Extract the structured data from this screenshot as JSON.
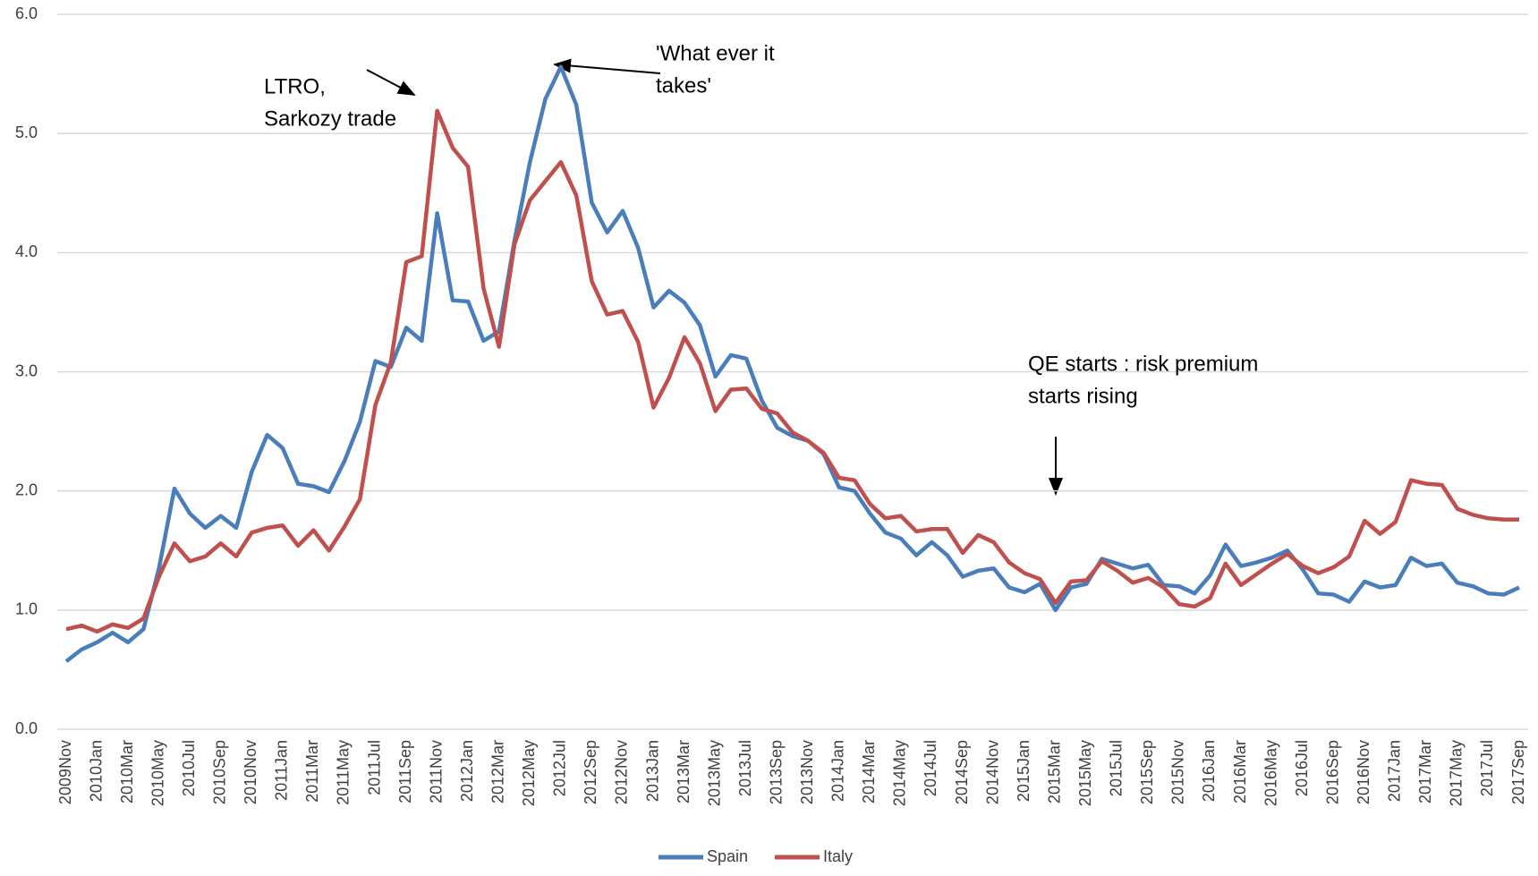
{
  "chart_data": {
    "type": "line",
    "categories": [
      "2009Nov",
      null,
      "2010Jan",
      null,
      "2010Mar",
      null,
      "2010May",
      null,
      "2010Jul",
      null,
      "2010Sep",
      null,
      "2010Nov",
      null,
      "2011Jan",
      null,
      "2011Mar",
      null,
      "2011May",
      null,
      "2011Jul",
      null,
      "2011Sep",
      null,
      "2011Nov",
      null,
      "2012Jan",
      null,
      "2012Mar",
      null,
      "2012May",
      null,
      "2012Jul",
      null,
      "2012Sep",
      null,
      "2012Nov",
      null,
      "2013Jan",
      null,
      "2013Mar",
      null,
      "2013May",
      null,
      "2013Jul",
      null,
      "2013Sep",
      null,
      "2013Nov",
      null,
      "2014Jan",
      null,
      "2014Mar",
      null,
      "2014May",
      null,
      "2014Jul",
      null,
      "2014Sep",
      null,
      "2014Nov",
      null,
      "2015Jan",
      null,
      "2015Mar",
      null,
      "2015May",
      null,
      "2015Jul",
      null,
      "2015Sep",
      null,
      "2015Nov",
      null,
      "2016Jan",
      null,
      "2016Mar",
      null,
      "2016May",
      null,
      "2016Jul",
      null,
      "2016Sep",
      null,
      "2016Nov",
      null,
      "2017Jan",
      null,
      "2017Mar",
      null,
      "2017May",
      null,
      "2017Jul",
      null,
      "2017Sep"
    ],
    "series": [
      {
        "name": "Spain",
        "color": "#4a7ebb",
        "values": [
          0.57,
          0.67,
          0.73,
          0.81,
          0.73,
          0.84,
          1.35,
          2.02,
          1.81,
          1.69,
          1.79,
          1.69,
          2.16,
          2.47,
          2.36,
          2.06,
          2.04,
          1.99,
          2.25,
          2.58,
          3.09,
          3.04,
          3.37,
          3.26,
          4.33,
          3.6,
          3.59,
          3.26,
          3.34,
          4.1,
          4.76,
          5.29,
          5.56,
          5.24,
          4.42,
          4.17,
          4.35,
          4.04,
          3.54,
          3.68,
          3.58,
          3.39,
          2.96,
          3.14,
          3.11,
          2.76,
          2.53,
          2.46,
          2.42,
          2.31,
          2.03,
          2.0,
          1.81,
          1.65,
          1.6,
          1.46,
          1.57,
          1.46,
          1.28,
          1.33,
          1.35,
          1.19,
          1.15,
          1.22,
          1.0,
          1.19,
          1.22,
          1.43,
          1.39,
          1.35,
          1.38,
          1.21,
          1.2,
          1.14,
          1.29,
          1.55,
          1.37,
          1.4,
          1.44,
          1.5,
          1.34,
          1.14,
          1.13,
          1.07,
          1.24,
          1.19,
          1.21,
          1.44,
          1.37,
          1.39,
          1.23,
          1.2,
          1.14,
          1.13,
          1.19
        ]
      },
      {
        "name": "Italy",
        "color": "#c0504d",
        "values": [
          0.84,
          0.87,
          0.82,
          0.88,
          0.85,
          0.93,
          1.28,
          1.56,
          1.41,
          1.45,
          1.56,
          1.45,
          1.65,
          1.69,
          1.71,
          1.54,
          1.67,
          1.5,
          1.7,
          1.93,
          2.72,
          3.08,
          3.92,
          3.97,
          5.19,
          4.88,
          4.72,
          3.7,
          3.21,
          4.07,
          4.44,
          4.6,
          4.76,
          4.48,
          3.76,
          3.48,
          3.51,
          3.25,
          2.7,
          2.95,
          3.29,
          3.07,
          2.67,
          2.85,
          2.86,
          2.69,
          2.65,
          2.49,
          2.42,
          2.32,
          2.11,
          2.09,
          1.89,
          1.77,
          1.79,
          1.66,
          1.68,
          1.68,
          1.48,
          1.63,
          1.57,
          1.4,
          1.31,
          1.26,
          1.06,
          1.24,
          1.25,
          1.41,
          1.33,
          1.23,
          1.27,
          1.19,
          1.05,
          1.03,
          1.1,
          1.39,
          1.21,
          1.3,
          1.39,
          1.47,
          1.37,
          1.31,
          1.36,
          1.45,
          1.75,
          1.64,
          1.74,
          2.09,
          2.06,
          2.05,
          1.85,
          1.8,
          1.77,
          1.76,
          1.76
        ]
      }
    ],
    "ylim": [
      0,
      6
    ],
    "yticks": [
      {
        "value": 0,
        "label": "0.0"
      },
      {
        "value": 1,
        "label": "1.0"
      },
      {
        "value": 2,
        "label": "2.0"
      },
      {
        "value": 3,
        "label": "3.0"
      },
      {
        "value": 4,
        "label": "4.0"
      },
      {
        "value": 5,
        "label": "5.0"
      },
      {
        "value": 6,
        "label": "6.0"
      }
    ],
    "grid": true,
    "legend": "bottom",
    "annotations": [
      {
        "lines": [
          "LTRO,",
          "Sarkozy trade"
        ]
      },
      {
        "lines": [
          "'What ever it",
          "takes'"
        ]
      },
      {
        "lines": [
          "QE starts : risk premium",
          "starts rising"
        ]
      }
    ]
  }
}
